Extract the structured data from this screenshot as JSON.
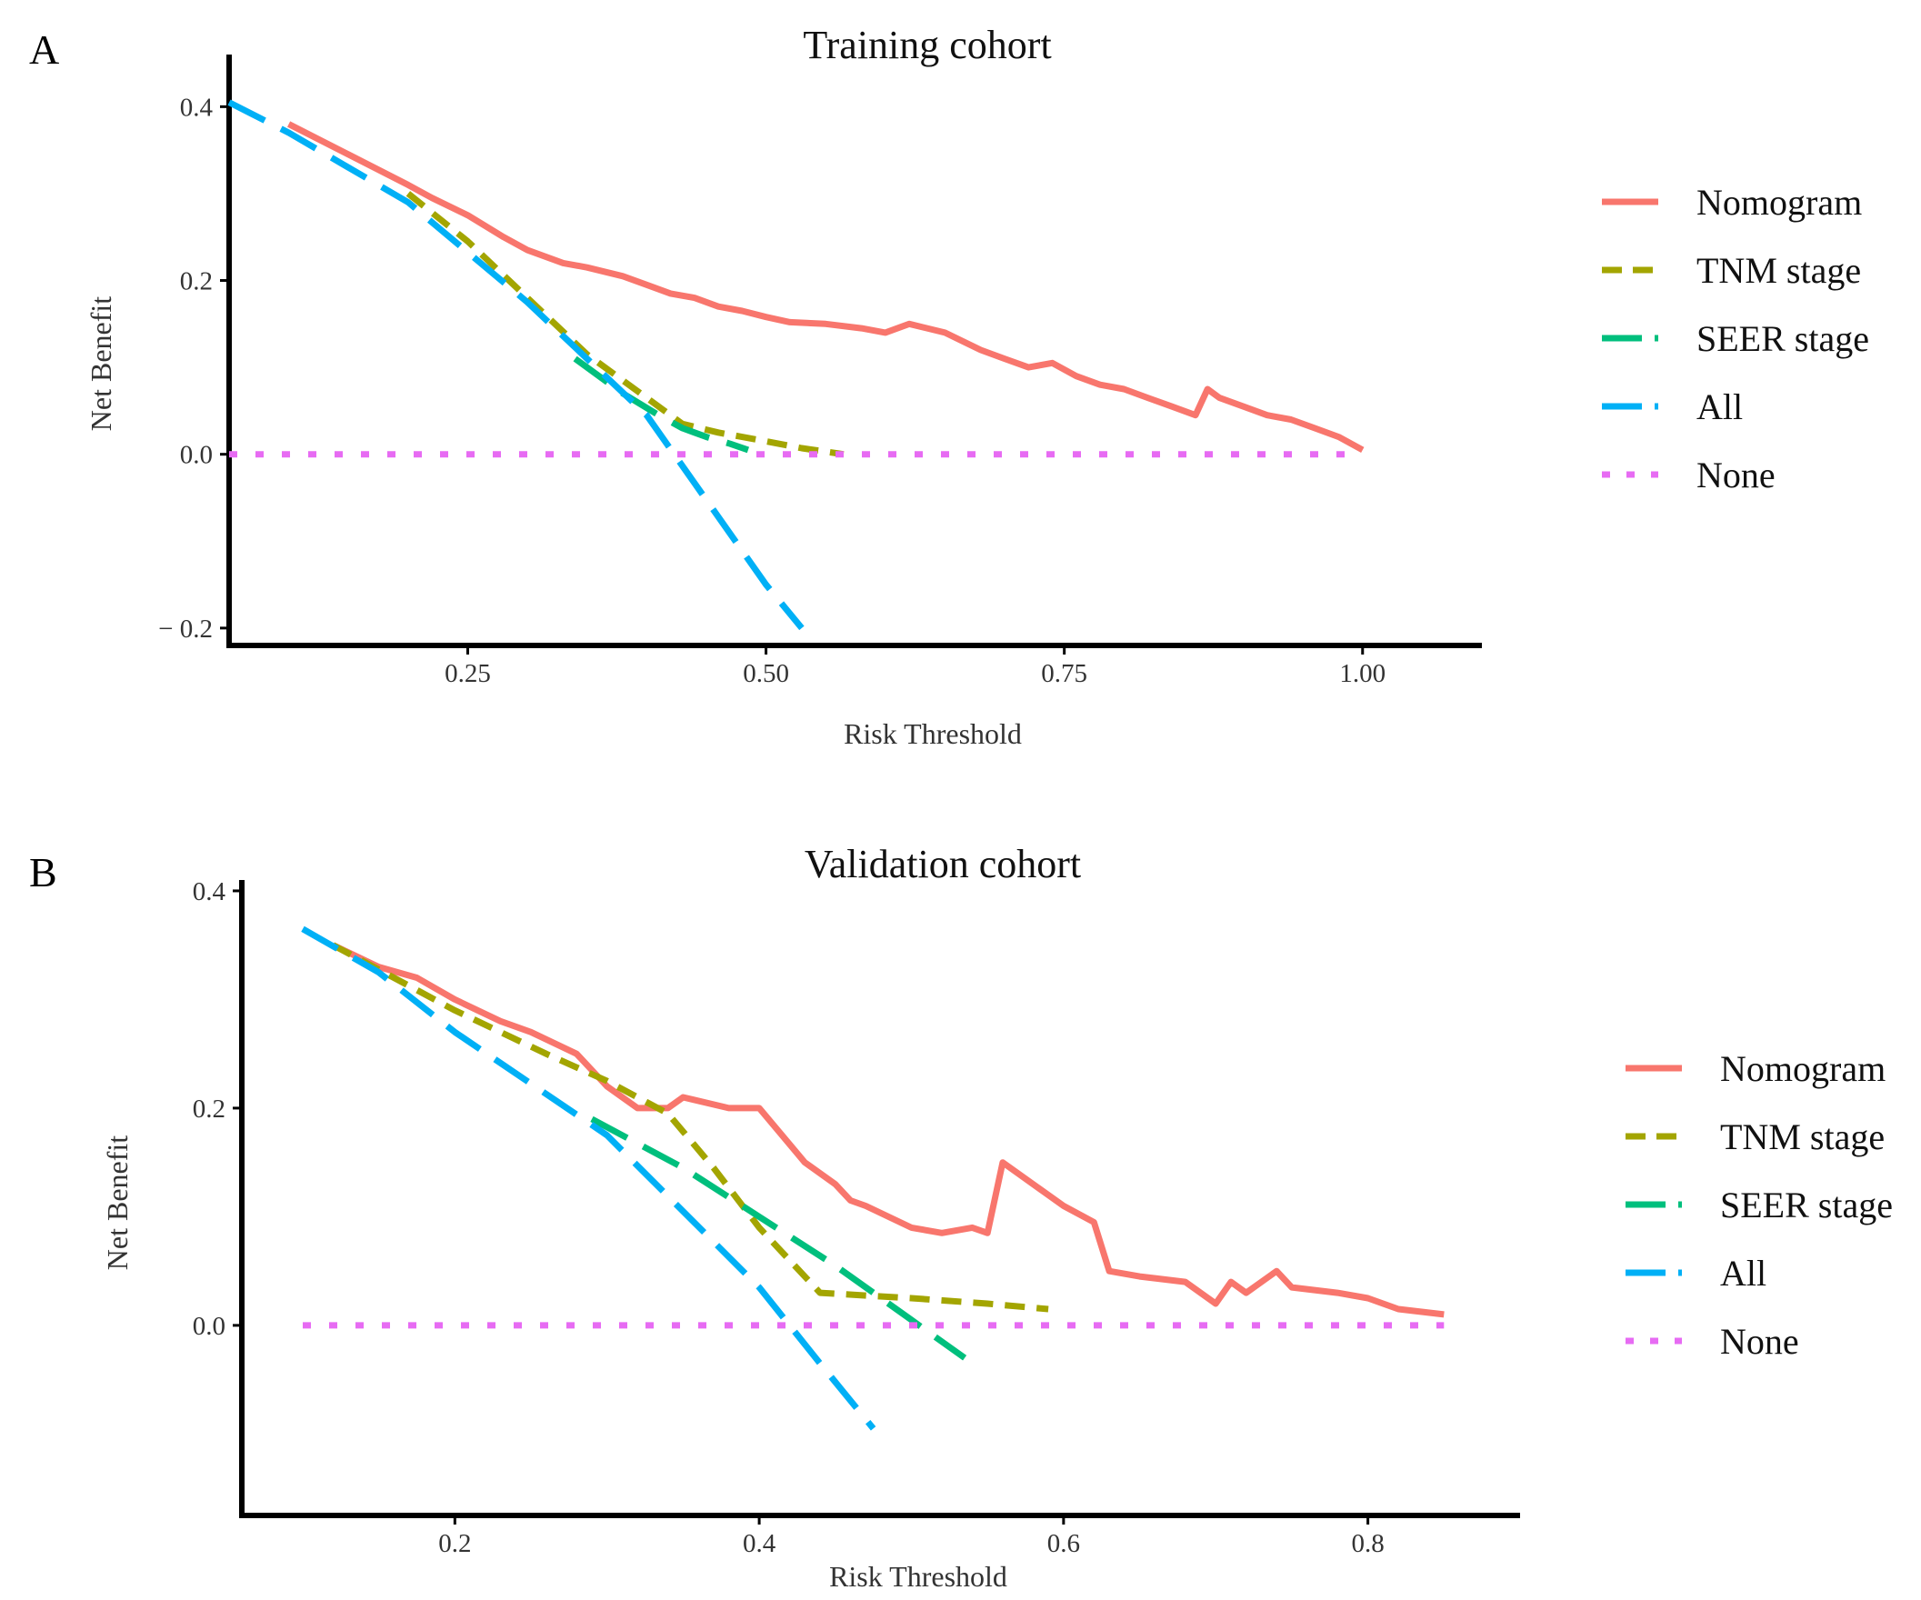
{
  "chart_data": [
    {
      "type": "line",
      "panel": "A",
      "title": "Training cohort",
      "xlabel": "Risk Threshold",
      "ylabel": "Net Benefit",
      "xlim": [
        0.05,
        1.1
      ],
      "ylim": [
        -0.22,
        0.46
      ],
      "xticks": [
        {
          "value": 0.25,
          "label": "0.25"
        },
        {
          "value": 0.5,
          "label": "0.50"
        },
        {
          "value": 0.75,
          "label": "0.75"
        },
        {
          "value": 1.0,
          "label": "1.00"
        }
      ],
      "yticks": [
        {
          "value": -0.2,
          "label": "− 0.2"
        },
        {
          "value": 0.0,
          "label": "0.0"
        },
        {
          "value": 0.2,
          "label": "0.2"
        },
        {
          "value": 0.4,
          "label": "0.4"
        }
      ],
      "grid": false,
      "legend_position": "right",
      "series": [
        {
          "name": "Nomogram",
          "color": "#F8766D",
          "dash": "solid",
          "x": [
            0.1,
            0.15,
            0.2,
            0.22,
            0.25,
            0.28,
            0.3,
            0.33,
            0.35,
            0.38,
            0.4,
            0.42,
            0.44,
            0.46,
            0.48,
            0.5,
            0.52,
            0.55,
            0.58,
            0.6,
            0.62,
            0.65,
            0.68,
            0.7,
            0.72,
            0.74,
            0.76,
            0.78,
            0.8,
            0.82,
            0.84,
            0.86,
            0.87,
            0.88,
            0.9,
            0.92,
            0.94,
            0.96,
            0.98,
            1.0
          ],
          "y": [
            0.38,
            0.345,
            0.31,
            0.295,
            0.275,
            0.25,
            0.235,
            0.22,
            0.215,
            0.205,
            0.195,
            0.185,
            0.18,
            0.17,
            0.165,
            0.158,
            0.152,
            0.15,
            0.145,
            0.14,
            0.15,
            0.14,
            0.12,
            0.11,
            0.1,
            0.105,
            0.09,
            0.08,
            0.075,
            0.065,
            0.055,
            0.045,
            0.075,
            0.065,
            0.055,
            0.045,
            0.04,
            0.03,
            0.02,
            0.005
          ]
        },
        {
          "name": "TNM stage",
          "color": "#A3A500",
          "dash": "short-dash",
          "x": [
            0.2,
            0.25,
            0.3,
            0.35,
            0.4,
            0.43,
            0.46,
            0.5,
            0.53,
            0.565
          ],
          "y": [
            0.3,
            0.245,
            0.18,
            0.115,
            0.065,
            0.035,
            0.025,
            0.015,
            0.007,
            0.0
          ]
        },
        {
          "name": "SEER stage",
          "color": "#00BF7D",
          "dash": "long-dash",
          "x": [
            0.34,
            0.38,
            0.41,
            0.43,
            0.45,
            0.47,
            0.485
          ],
          "y": [
            0.11,
            0.07,
            0.045,
            0.03,
            0.02,
            0.012,
            0.005
          ]
        },
        {
          "name": "All",
          "color": "#00B0F6",
          "dash": "long-dash",
          "x": [
            0.05,
            0.1,
            0.2,
            0.3,
            0.4,
            0.5,
            0.53
          ],
          "y": [
            0.405,
            0.37,
            0.29,
            0.175,
            0.045,
            -0.15,
            -0.2
          ]
        },
        {
          "name": "None",
          "color": "#E76BF3",
          "dash": "dotted",
          "x": [
            0.05,
            1.0
          ],
          "y": [
            0.0,
            0.0
          ]
        }
      ]
    },
    {
      "type": "line",
      "panel": "B",
      "title": "Validation cohort",
      "xlabel": "Risk Threshold",
      "ylabel": "Net Benefit",
      "xlim": [
        0.06,
        0.9
      ],
      "ylim": [
        -0.175,
        0.41
      ],
      "xticks": [
        {
          "value": 0.2,
          "label": "0.2"
        },
        {
          "value": 0.4,
          "label": "0.4"
        },
        {
          "value": 0.6,
          "label": "0.6"
        },
        {
          "value": 0.8,
          "label": "0.8"
        }
      ],
      "yticks": [
        {
          "value": 0.0,
          "label": "0.0"
        },
        {
          "value": 0.2,
          "label": "0.2"
        },
        {
          "value": 0.4,
          "label": "0.4"
        }
      ],
      "grid": false,
      "legend_position": "right",
      "series": [
        {
          "name": "Nomogram",
          "color": "#F8766D",
          "dash": "solid",
          "x": [
            0.12,
            0.15,
            0.175,
            0.2,
            0.23,
            0.25,
            0.28,
            0.3,
            0.32,
            0.34,
            0.35,
            0.38,
            0.4,
            0.43,
            0.45,
            0.46,
            0.47,
            0.5,
            0.52,
            0.54,
            0.55,
            0.56,
            0.6,
            0.62,
            0.63,
            0.65,
            0.68,
            0.7,
            0.71,
            0.72,
            0.74,
            0.75,
            0.78,
            0.8,
            0.82,
            0.85
          ],
          "y": [
            0.35,
            0.33,
            0.32,
            0.3,
            0.28,
            0.27,
            0.25,
            0.22,
            0.2,
            0.2,
            0.21,
            0.2,
            0.2,
            0.15,
            0.13,
            0.115,
            0.11,
            0.09,
            0.085,
            0.09,
            0.085,
            0.15,
            0.11,
            0.095,
            0.05,
            0.045,
            0.04,
            0.02,
            0.04,
            0.03,
            0.05,
            0.035,
            0.03,
            0.025,
            0.015,
            0.01
          ]
        },
        {
          "name": "TNM stage",
          "color": "#A3A500",
          "dash": "short-dash",
          "x": [
            0.12,
            0.2,
            0.26,
            0.3,
            0.34,
            0.37,
            0.4,
            0.44,
            0.5,
            0.55,
            0.59
          ],
          "y": [
            0.35,
            0.29,
            0.25,
            0.225,
            0.195,
            0.145,
            0.09,
            0.03,
            0.025,
            0.02,
            0.015
          ]
        },
        {
          "name": "SEER stage",
          "color": "#00BF7D",
          "dash": "long-dash",
          "x": [
            0.29,
            0.35,
            0.4,
            0.45,
            0.5,
            0.535
          ],
          "y": [
            0.19,
            0.145,
            0.1,
            0.055,
            0.005,
            -0.03
          ]
        },
        {
          "name": "All",
          "color": "#00B0F6",
          "dash": "long-dash",
          "x": [
            0.1,
            0.15,
            0.2,
            0.3,
            0.4,
            0.44,
            0.475
          ],
          "y": [
            0.365,
            0.325,
            0.27,
            0.175,
            0.035,
            -0.035,
            -0.095
          ]
        },
        {
          "name": "None",
          "color": "#E76BF3",
          "dash": "dotted",
          "x": [
            0.1,
            0.85
          ],
          "y": [
            0.0,
            0.0
          ]
        }
      ]
    }
  ]
}
